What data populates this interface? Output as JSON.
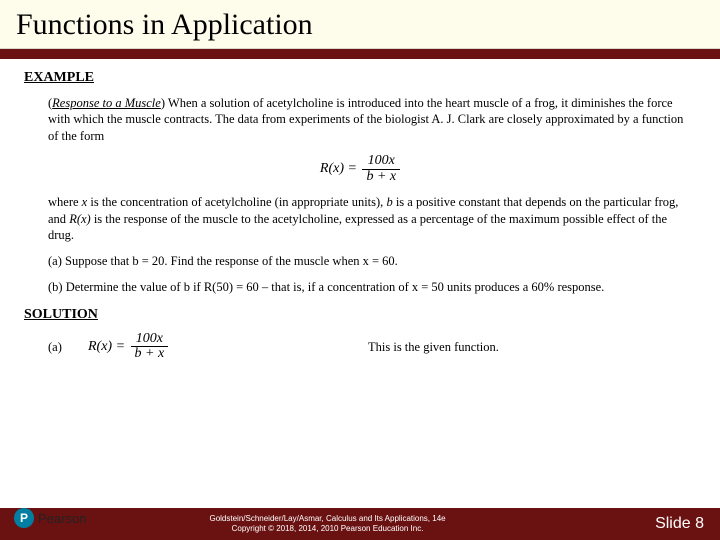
{
  "colors": {
    "title_band_bg": "#fefdeb",
    "rule_bg": "#6a1212",
    "footer_bg": "#6a1212",
    "logo_bg": "#007fa3"
  },
  "title": "Functions in Application",
  "example_heading": "EXAMPLE",
  "subtitle": "Response to a Muscle",
  "para1_after": ")  When a solution of acetylcholine is introduced into the heart muscle of a frog, it diminishes the force with which the muscle contracts.  The data from experiments of the biologist A. J. Clark are closely approximated by a function of the form",
  "formula_lead": "R(x) = ",
  "formula_num": "100x",
  "formula_den": "b + x",
  "para2_pre": "where ",
  "para2_x": "x",
  "para2_a": " is the concentration of acetylcholine (in appropriate units), ",
  "para2_b": "b",
  "para2_c": " is a positive constant that depends on the particular frog, and ",
  "para2_rx": "R(x)",
  "para2_d": " is the response of the muscle to the acetylcholine, expressed as a percentage of the maximum possible effect of the drug.",
  "part_a": "(a) Suppose that b = 20.  Find the response of the muscle when x = 60.",
  "part_b": "(b) Determine the value of b if R(50) = 60 – that is, if a concentration of x = 50 units produces a 60% response.",
  "solution_heading": "SOLUTION",
  "sol_a_label": "(a)",
  "sol_a_text": "This is the given function.",
  "footer": {
    "logo_letter": "P",
    "brand": "Pearson",
    "line1": "Goldstein/Schneider/Lay/Asmar, Calculus and Its Applications, 14e",
    "line2": "Copyright © 2018, 2014, 2010 Pearson Education Inc.",
    "slide": "Slide 8"
  }
}
